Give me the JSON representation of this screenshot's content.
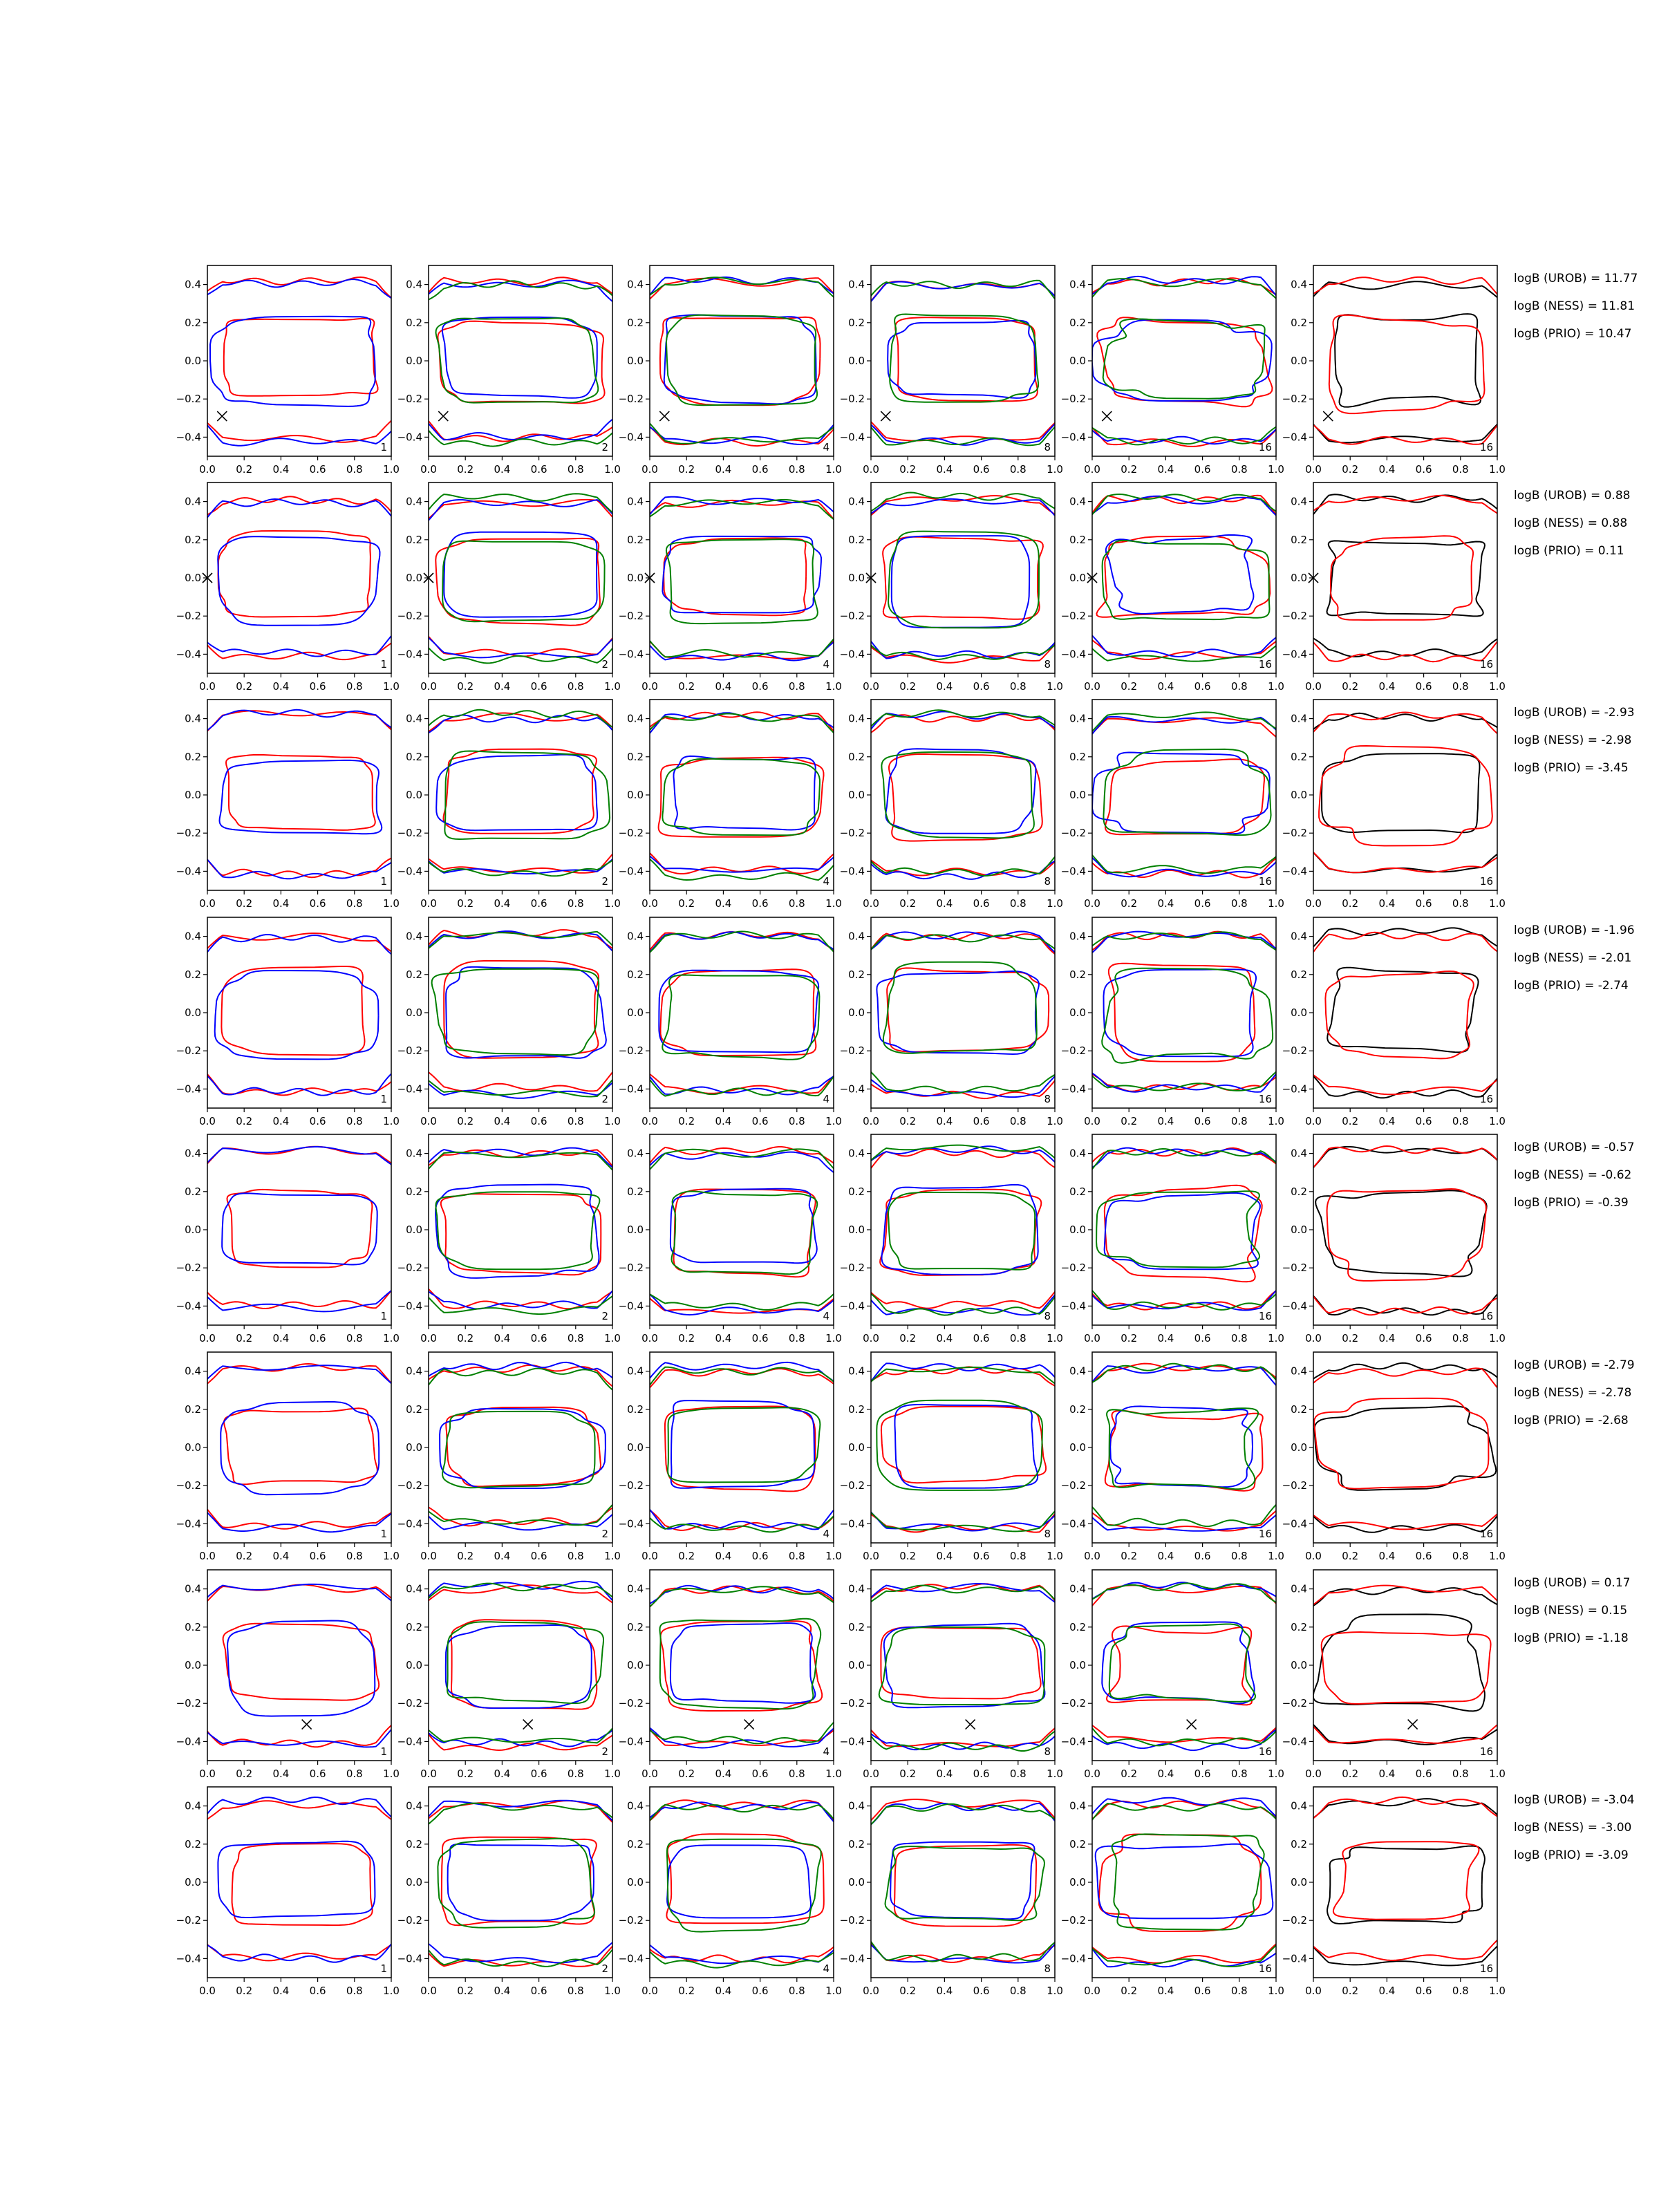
{
  "chart_data": {
    "type": "line",
    "title": "",
    "xlim": [
      0.0,
      1.0
    ],
    "ylim": [
      -0.5,
      0.5
    ],
    "x_ticks": [
      "0.0",
      "0.2",
      "0.4",
      "0.6",
      "0.8",
      "1.0"
    ],
    "y_ticks": [
      "0.4",
      "0.2",
      "0.0",
      "−0.2",
      "−0.4"
    ],
    "grid": false,
    "colors": {
      "red": "#ff0000",
      "blue": "#0000ff",
      "green": "#008000",
      "black": "#000000"
    },
    "column_labels": [
      "1",
      "2",
      "4",
      "8",
      "16",
      "16"
    ],
    "rows": [
      {
        "marker": [
          0.08,
          -0.29
        ],
        "logB": [
          "logB (UROB) = 11.77",
          "logB (NESS) = 11.81",
          "logB (PRIO) = 10.47"
        ]
      },
      {
        "marker": [
          0.0,
          0.0
        ],
        "logB": [
          "logB (UROB) = 0.88",
          "logB (NESS) = 0.88",
          "logB (PRIO) = 0.11"
        ]
      },
      {
        "marker": null,
        "logB": [
          "logB (UROB) = -2.93",
          "logB (NESS) = -2.98",
          "logB (PRIO) = -3.45"
        ]
      },
      {
        "marker": null,
        "logB": [
          "logB (UROB) = -1.96",
          "logB (NESS) = -2.01",
          "logB (PRIO) = -2.74"
        ]
      },
      {
        "marker": null,
        "logB": [
          "logB (UROB) = -0.57",
          "logB (NESS) = -0.62",
          "logB (PRIO) = -0.39"
        ]
      },
      {
        "marker": null,
        "logB": [
          "logB (UROB) = -2.79",
          "logB (NESS) = -2.78",
          "logB (PRIO) = -2.68"
        ]
      },
      {
        "marker": [
          0.54,
          -0.31
        ],
        "logB": [
          "logB (UROB) = 0.17",
          "logB (NESS) = 0.15",
          "logB (PRIO) = -1.18"
        ]
      },
      {
        "marker": null,
        "logB": [
          "logB (UROB) = -3.04",
          "logB (NESS) = -3.00",
          "logB (PRIO) = -3.09"
        ]
      }
    ]
  }
}
